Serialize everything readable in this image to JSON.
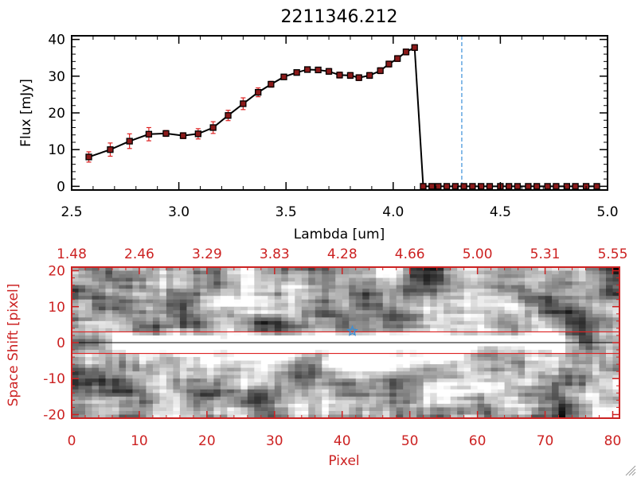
{
  "colors": {
    "axis_black": "#000000",
    "axis_red": "#cc2222",
    "marker_fill": "#8b1a1a",
    "error_bar": "#dd2222",
    "dashed_line": "#3a8fd8",
    "star": "#3a8fd8",
    "band_line": "#dd2222"
  },
  "chart_data": [
    {
      "type": "line",
      "title": "2211346.212",
      "xlabel": "Lambda [um]",
      "ylabel": "Flux [mJy]",
      "xlim": [
        2.5,
        5.0
      ],
      "ylim": [
        -1,
        41
      ],
      "xticks": [
        "2.5",
        "3.0",
        "3.5",
        "4.0",
        "4.5",
        "5.0"
      ],
      "xtick_values": [
        2.5,
        3.0,
        3.5,
        4.0,
        4.5,
        5.0
      ],
      "yticks": [
        "0",
        "10",
        "20",
        "30",
        "40"
      ],
      "ytick_values": [
        0,
        10,
        20,
        30,
        40
      ],
      "marker_vline_x": 4.32,
      "series": [
        {
          "name": "flux",
          "x": [
            2.58,
            2.68,
            2.77,
            2.86,
            2.94,
            3.02,
            3.09,
            3.16,
            3.23,
            3.3,
            3.37,
            3.43,
            3.49,
            3.55,
            3.6,
            3.65,
            3.7,
            3.75,
            3.8,
            3.84,
            3.89,
            3.94,
            3.98,
            4.02,
            4.06,
            4.1,
            4.14,
            4.18,
            4.21,
            4.25,
            4.29,
            4.33,
            4.37,
            4.41,
            4.45,
            4.5,
            4.54,
            4.58,
            4.63,
            4.67,
            4.72,
            4.76,
            4.81,
            4.85,
            4.9,
            4.95
          ],
          "y": [
            8,
            10,
            12.3,
            14.2,
            14.4,
            13.8,
            14.3,
            16,
            19.3,
            22.5,
            25.6,
            27.8,
            29.8,
            31,
            31.8,
            31.7,
            31.3,
            30.3,
            30.2,
            29.6,
            30.2,
            31.5,
            33.3,
            34.8,
            36.6,
            37.8,
            0,
            0,
            0,
            0,
            0,
            0,
            0,
            0,
            0,
            0,
            0,
            0,
            0,
            0,
            0,
            0,
            0,
            0,
            0,
            0
          ],
          "yerr": [
            1.4,
            1.8,
            2.0,
            1.8,
            0.8,
            0.8,
            1.4,
            1.6,
            1.4,
            1.6,
            1.2,
            0.8,
            0.6,
            0.6,
            0.6,
            0.6,
            0.8,
            0.8,
            0.8,
            0.8,
            0.8,
            0.8,
            0.8,
            0.8,
            0.8,
            0.8,
            0.2,
            0.2,
            0.2,
            0.2,
            0.2,
            0.2,
            0.2,
            0.2,
            0.2,
            0.2,
            0.2,
            0.2,
            0.2,
            0.2,
            0.2,
            0.2,
            0.2,
            0.2,
            0.2,
            0.2
          ]
        }
      ]
    },
    {
      "type": "heatmap",
      "xlabel": "Pixel",
      "ylabel": "Space Shift [pixel]",
      "xlim": [
        0,
        81
      ],
      "ylim": [
        -21,
        21
      ],
      "xticks": [
        "0",
        "10",
        "20",
        "30",
        "40",
        "50",
        "60",
        "70",
        "80"
      ],
      "xtick_values": [
        0,
        10,
        20,
        30,
        40,
        50,
        60,
        70,
        80
      ],
      "yticks": [
        "20",
        "10",
        "0",
        "-10",
        "-20"
      ],
      "ytick_values": [
        20,
        10,
        0,
        -10,
        -20
      ],
      "top_axis_labels": [
        "1.48",
        "2.46",
        "3.29",
        "3.83",
        "4.28",
        "4.66",
        "5.00",
        "5.31",
        "5.55"
      ],
      "top_axis_values": [
        0,
        10,
        20,
        30,
        40,
        50,
        60,
        70,
        80
      ],
      "trace_band": [
        -3,
        3
      ],
      "trace_center": 0,
      "trace_extent": [
        8,
        73
      ],
      "star_marker": [
        41.5,
        3.2
      ]
    }
  ]
}
